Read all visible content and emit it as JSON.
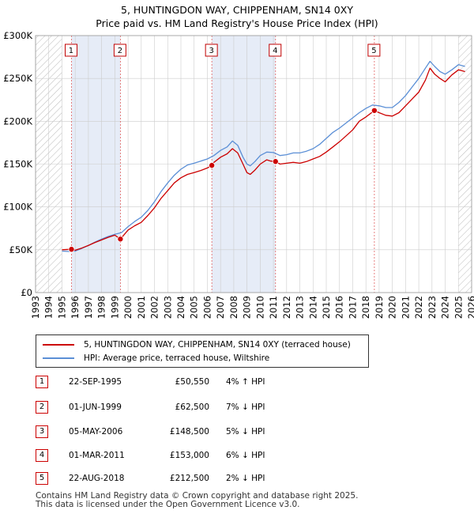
{
  "title_line1": "5, HUNTINGDON WAY, CHIPPENHAM, SN14 0XY",
  "title_line2": "Price paid vs. HM Land Registry's House Price Index (HPI)",
  "colors": {
    "property": "#cc0000",
    "hpi": "#5b8fd6",
    "shade": "#e6ecf7",
    "grid": "#cccccc",
    "marker_line": "#e06060"
  },
  "chart_data": {
    "type": "line",
    "title": "Price paid vs. HM Land Registry's House Price Index (HPI)",
    "xlabel": "",
    "ylabel": "",
    "xlim": [
      1993,
      2026
    ],
    "ylim": [
      0,
      300000
    ],
    "y_ticks": [
      0,
      50000,
      100000,
      150000,
      200000,
      250000,
      300000
    ],
    "y_tick_labels": [
      "£0",
      "£50K",
      "£100K",
      "£150K",
      "£200K",
      "£250K",
      "£300K"
    ],
    "x_ticks": [
      1993,
      1994,
      1995,
      1996,
      1997,
      1998,
      1999,
      2000,
      2001,
      2002,
      2003,
      2004,
      2005,
      2006,
      2007,
      2008,
      2009,
      2010,
      2011,
      2012,
      2013,
      2014,
      2015,
      2016,
      2017,
      2018,
      2019,
      2020,
      2021,
      2022,
      2023,
      2024,
      2025,
      2026
    ],
    "hatched_ranges": [
      [
        1993,
        1995.0
      ],
      [
        2025.0,
        2026
      ]
    ],
    "series": [
      {
        "name": "5, HUNTINGDON WAY, CHIPPENHAM, SN14 0XY (terraced house)",
        "color": "#cc0000",
        "x": [
          1995.0,
          1995.72,
          1996.0,
          1996.5,
          1997.0,
          1997.5,
          1998.0,
          1998.5,
          1999.0,
          1999.42,
          2000.0,
          2000.5,
          2001.0,
          2001.5,
          2002.0,
          2002.5,
          2003.0,
          2003.5,
          2004.0,
          2004.5,
          2005.0,
          2005.5,
          2006.0,
          2006.34,
          2006.5,
          2007.0,
          2007.5,
          2007.9,
          2008.3,
          2008.7,
          2009.0,
          2009.25,
          2009.6,
          2010.0,
          2010.5,
          2010.8,
          2011.16,
          2011.5,
          2012.0,
          2012.5,
          2013.0,
          2013.5,
          2014.0,
          2014.5,
          2015.0,
          2015.5,
          2016.0,
          2016.5,
          2017.0,
          2017.5,
          2018.0,
          2018.64,
          2019.0,
          2019.5,
          2020.0,
          2020.5,
          2021.0,
          2021.5,
          2022.0,
          2022.5,
          2022.85,
          2023.2,
          2023.6,
          2024.0,
          2024.5,
          2025.0,
          2025.5
        ],
        "y": [
          50000,
          50550,
          49500,
          52000,
          55000,
          58500,
          61500,
          64500,
          67000,
          62500,
          73000,
          78000,
          82000,
          90000,
          99000,
          110000,
          119000,
          128000,
          134000,
          138000,
          140000,
          142500,
          145500,
          148500,
          152000,
          158000,
          162000,
          168000,
          163000,
          150000,
          140000,
          138000,
          143000,
          150000,
          155000,
          153500,
          153000,
          150000,
          151000,
          152000,
          151000,
          153000,
          156000,
          159000,
          164000,
          170000,
          176000,
          183000,
          190000,
          200000,
          205000,
          212500,
          210000,
          207000,
          206000,
          210000,
          218000,
          226000,
          234000,
          248000,
          262000,
          255000,
          250000,
          246000,
          254000,
          260000,
          258000
        ]
      },
      {
        "name": "HPI: Average price, terraced house, Wiltshire",
        "color": "#5b8fd6",
        "x": [
          1995.0,
          1995.5,
          1996.0,
          1996.5,
          1997.0,
          1997.5,
          1998.0,
          1998.5,
          1999.0,
          1999.5,
          2000.0,
          2000.5,
          2001.0,
          2001.5,
          2002.0,
          2002.5,
          2003.0,
          2003.5,
          2004.0,
          2004.5,
          2005.0,
          2005.5,
          2006.0,
          2006.5,
          2007.0,
          2007.5,
          2007.9,
          2008.3,
          2008.7,
          2009.0,
          2009.25,
          2009.6,
          2010.0,
          2010.5,
          2011.0,
          2011.5,
          2012.0,
          2012.5,
          2013.0,
          2013.5,
          2014.0,
          2014.5,
          2015.0,
          2015.5,
          2016.0,
          2016.5,
          2017.0,
          2017.5,
          2018.0,
          2018.5,
          2019.0,
          2019.5,
          2020.0,
          2020.5,
          2021.0,
          2021.5,
          2022.0,
          2022.5,
          2022.85,
          2023.2,
          2023.6,
          2024.0,
          2024.5,
          2025.0,
          2025.5
        ],
        "y": [
          48500,
          48000,
          48500,
          51500,
          55000,
          59000,
          62500,
          65500,
          68000,
          70000,
          77000,
          83000,
          88000,
          96000,
          106000,
          118000,
          128000,
          137000,
          144000,
          149000,
          151000,
          153500,
          156000,
          160000,
          166000,
          170000,
          177000,
          172000,
          158000,
          150000,
          148000,
          153000,
          160000,
          164000,
          163500,
          160000,
          161000,
          163000,
          163000,
          165000,
          168000,
          173000,
          180000,
          187000,
          192000,
          198000,
          204000,
          210000,
          215000,
          219000,
          218000,
          216000,
          216000,
          222000,
          230000,
          240000,
          250000,
          262000,
          270000,
          264000,
          258000,
          255000,
          260000,
          266000,
          264000
        ]
      }
    ],
    "sales": [
      {
        "label": "1",
        "x": 1995.72,
        "y": 50550
      },
      {
        "label": "2",
        "x": 1999.42,
        "y": 62500
      },
      {
        "label": "3",
        "x": 2006.34,
        "y": 148500
      },
      {
        "label": "4",
        "x": 2011.16,
        "y": 153000
      },
      {
        "label": "5",
        "x": 2018.64,
        "y": 212500
      }
    ]
  },
  "legend": {
    "property_label": "5, HUNTINGDON WAY, CHIPPENHAM, SN14 0XY (terraced house)",
    "hpi_label": "HPI: Average price, terraced house, Wiltshire"
  },
  "transactions": [
    {
      "num": "1",
      "date": "22-SEP-1995",
      "price": "£50,550",
      "hpi": "4% ↑ HPI"
    },
    {
      "num": "2",
      "date": "01-JUN-1999",
      "price": "£62,500",
      "hpi": "7% ↓ HPI"
    },
    {
      "num": "3",
      "date": "05-MAY-2006",
      "price": "£148,500",
      "hpi": "5% ↓ HPI"
    },
    {
      "num": "4",
      "date": "01-MAR-2011",
      "price": "£153,000",
      "hpi": "6% ↓ HPI"
    },
    {
      "num": "5",
      "date": "22-AUG-2018",
      "price": "£212,500",
      "hpi": "2% ↓ HPI"
    }
  ],
  "footer_line1": "Contains HM Land Registry data © Crown copyright and database right 2025.",
  "footer_line2": "This data is licensed under the Open Government Licence v3.0."
}
